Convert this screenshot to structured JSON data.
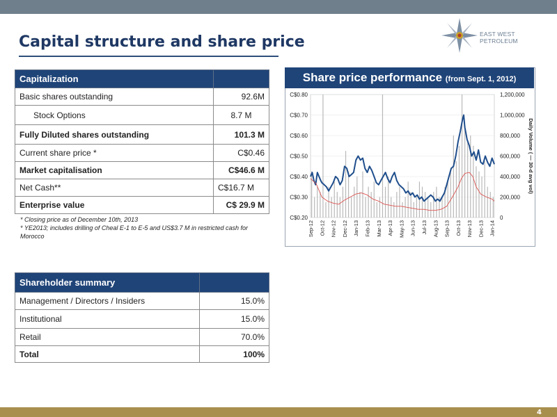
{
  "page_title": "Capital structure and share price",
  "logo_text": "EAST WEST PETROLEUM",
  "page_number": "4",
  "capitalization": {
    "header": "Capitalization",
    "rows": [
      {
        "label": "Basic shares outstanding",
        "value": "92.6M"
      },
      {
        "label": "Stock Options",
        "value": "8.7 M"
      },
      {
        "label": "Fully Diluted shares outstanding",
        "value": "101.3 M"
      },
      {
        "label": "Current share price *",
        "value": "C$0.46"
      },
      {
        "label": "Market capitalisation",
        "value": "C$46.6 M"
      },
      {
        "label": "Net Cash**",
        "value": "C$16.7 M"
      },
      {
        "label": "Enterprise value",
        "value": "C$ 29.9 M"
      }
    ]
  },
  "notes": {
    "note1": "* Closing price as of December 10th, 2013",
    "note2": "* YE2013; includes drilling of Cheal E-1 to E-5 and US$3.7 M in restricted cash for Morocco"
  },
  "shareholders": {
    "header": "Shareholder summary",
    "rows": [
      {
        "label": "Management / Directors / Insiders",
        "value": "15.0%"
      },
      {
        "label": "Institutional",
        "value": "15.0%"
      },
      {
        "label": "Retail",
        "value": "70.0%"
      },
      {
        "label": "Total",
        "value": "100%"
      }
    ]
  },
  "chart_data": {
    "type": "line",
    "title": "Share price performance",
    "subtitle": "(from Sept. 1, 2012)",
    "xlabel": "",
    "ylabel": "",
    "y2label": "Daily Volume ( — 30-d avg vol)",
    "categories": [
      "Sep-12",
      "Oct-12",
      "Nov-12",
      "Dec-12",
      "Jan-13",
      "Feb-13",
      "Mar-13",
      "Apr-13",
      "May-13",
      "Jun-13",
      "Jul-13",
      "Aug-13",
      "Sep-13",
      "Oct-13",
      "Nov-13",
      "Dec-13",
      "Jan-14"
    ],
    "y_ticks": [
      "C$0.20",
      "C$0.30",
      "C$0.40",
      "C$0.50",
      "C$0.60",
      "C$0.70",
      "C$0.80"
    ],
    "y2_ticks": [
      "0",
      "200,000",
      "400,000",
      "600,000",
      "800,000",
      "1,000,000",
      "1,200,000"
    ],
    "ylim": [
      0.2,
      0.8
    ],
    "y2lim": [
      0,
      1200000
    ],
    "series": [
      {
        "name": "Share price",
        "axis": "left",
        "color": "#1f4e8c",
        "x": [
          0,
          0.15,
          0.3,
          0.45,
          0.6,
          0.75,
          0.9,
          1.0,
          1.2,
          1.4,
          1.6,
          1.8,
          2.0,
          2.2,
          2.4,
          2.6,
          2.8,
          3.0,
          3.2,
          3.4,
          3.6,
          3.8,
          4.0,
          4.2,
          4.4,
          4.6,
          4.8,
          5.0,
          5.2,
          5.4,
          5.6,
          5.8,
          6.0,
          6.2,
          6.4,
          6.6,
          6.8,
          7.0,
          7.2,
          7.4,
          7.6,
          7.8,
          8.0,
          8.2,
          8.4,
          8.6,
          8.8,
          9.0,
          9.2,
          9.4,
          9.6,
          9.8,
          10.0,
          10.2,
          10.4,
          10.6,
          10.8,
          11.0,
          11.2,
          11.4,
          11.6,
          11.8,
          12.0,
          12.2,
          12.4,
          12.6,
          12.8,
          13.0,
          13.2,
          13.4,
          13.5,
          13.6,
          13.8,
          14.0,
          14.2,
          14.4,
          14.6,
          14.8,
          15.0,
          15.2,
          15.4,
          15.6,
          15.8,
          16.0,
          16.2
        ],
        "values": [
          0.4,
          0.42,
          0.38,
          0.36,
          0.42,
          0.4,
          0.38,
          0.37,
          0.36,
          0.35,
          0.33,
          0.35,
          0.37,
          0.4,
          0.39,
          0.36,
          0.38,
          0.45,
          0.44,
          0.4,
          0.41,
          0.42,
          0.48,
          0.5,
          0.48,
          0.49,
          0.44,
          0.42,
          0.45,
          0.43,
          0.4,
          0.37,
          0.36,
          0.38,
          0.4,
          0.42,
          0.39,
          0.37,
          0.4,
          0.42,
          0.38,
          0.36,
          0.35,
          0.34,
          0.32,
          0.33,
          0.31,
          0.32,
          0.3,
          0.31,
          0.29,
          0.3,
          0.28,
          0.29,
          0.3,
          0.31,
          0.3,
          0.28,
          0.29,
          0.28,
          0.3,
          0.32,
          0.36,
          0.4,
          0.44,
          0.45,
          0.5,
          0.57,
          0.62,
          0.68,
          0.7,
          0.64,
          0.58,
          0.55,
          0.5,
          0.52,
          0.48,
          0.53,
          0.47,
          0.46,
          0.5,
          0.47,
          0.45,
          0.49,
          0.46
        ]
      },
      {
        "name": "30-d avg vol",
        "axis": "right",
        "color": "#d9534f",
        "x": [
          0,
          0.5,
          1.0,
          1.5,
          2.0,
          2.5,
          3.0,
          3.5,
          4.0,
          4.5,
          5.0,
          5.5,
          6.0,
          6.5,
          7.0,
          7.5,
          8.0,
          8.5,
          9.0,
          9.5,
          10.0,
          10.5,
          11.0,
          11.5,
          12.0,
          12.5,
          13.0,
          13.3,
          13.6,
          14.0,
          14.3,
          14.6,
          15.0,
          15.5,
          16.0,
          16.2
        ],
        "values": [
          380000,
          330000,
          200000,
          160000,
          140000,
          130000,
          170000,
          200000,
          230000,
          240000,
          220000,
          180000,
          160000,
          130000,
          120000,
          110000,
          110000,
          100000,
          90000,
          80000,
          80000,
          70000,
          70000,
          80000,
          110000,
          200000,
          300000,
          380000,
          430000,
          440000,
          400000,
          300000,
          230000,
          200000,
          180000,
          160000
        ]
      },
      {
        "name": "Daily volume",
        "axis": "right",
        "type": "bar",
        "color": "#b8b8b8",
        "x": [
          0.1,
          0.35,
          0.6,
          0.85,
          1.1,
          1.35,
          1.6,
          1.85,
          2.1,
          2.35,
          2.6,
          2.85,
          3.1,
          3.35,
          3.6,
          3.85,
          4.1,
          4.35,
          4.6,
          4.85,
          5.1,
          5.35,
          5.6,
          5.85,
          6.1,
          6.35,
          6.6,
          6.85,
          7.1,
          7.35,
          7.6,
          7.85,
          8.1,
          8.35,
          8.6,
          8.85,
          9.1,
          9.35,
          9.6,
          9.85,
          10.1,
          10.35,
          10.6,
          10.85,
          11.1,
          11.35,
          11.6,
          11.85,
          12.1,
          12.35,
          12.6,
          12.85,
          13.1,
          13.35,
          13.6,
          13.85,
          14.1,
          14.35,
          14.6,
          14.85,
          15.1,
          15.35,
          15.6,
          15.85,
          16.1
        ],
        "values": [
          450000,
          200000,
          300000,
          250000,
          1200000,
          150000,
          300000,
          200000,
          350000,
          250000,
          200000,
          300000,
          650000,
          450000,
          200000,
          300000,
          400000,
          250000,
          450000,
          200000,
          300000,
          250000,
          350000,
          150000,
          200000,
          1200000,
          300000,
          400000,
          200000,
          150000,
          250000,
          300000,
          150000,
          200000,
          350000,
          250000,
          150000,
          200000,
          350000,
          300000,
          250000,
          200000,
          150000,
          250000,
          300000,
          200000,
          200000,
          300000,
          350000,
          450000,
          800000,
          550000,
          700000,
          1200000,
          900000,
          750000,
          800000,
          700000,
          500000,
          450000,
          400000,
          550000,
          300000,
          250000,
          200000
        ]
      }
    ],
    "grid": true
  }
}
